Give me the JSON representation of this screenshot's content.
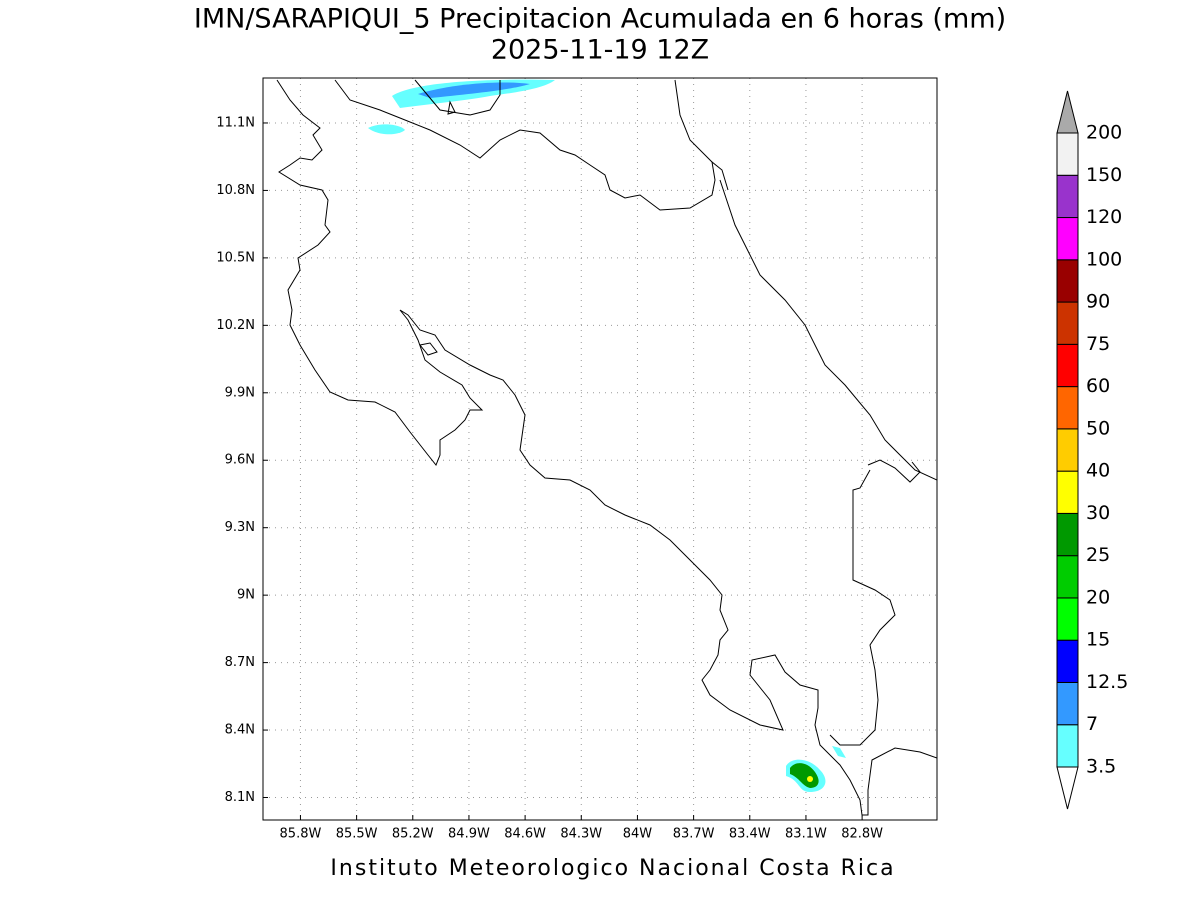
{
  "chart_data": {
    "type": "map",
    "title": "IMN/SARAPIQUI_5 Precipitacion Acumulada en 6 horas (mm)",
    "subtitle": "2025-11-19 12Z",
    "footer": "Instituto Meteorologico Nacional Costa Rica",
    "xlim": [
      -86.0,
      -82.4
    ],
    "ylim": [
      8.0,
      11.3
    ],
    "xticks": [
      {
        "value": -85.8,
        "label": "85.8W"
      },
      {
        "value": -85.5,
        "label": "85.5W"
      },
      {
        "value": -85.2,
        "label": "85.2W"
      },
      {
        "value": -84.9,
        "label": "84.9W"
      },
      {
        "value": -84.6,
        "label": "84.6W"
      },
      {
        "value": -84.3,
        "label": "84.3W"
      },
      {
        "value": -84.0,
        "label": "84W"
      },
      {
        "value": -83.7,
        "label": "83.7W"
      },
      {
        "value": -83.4,
        "label": "83.4W"
      },
      {
        "value": -83.1,
        "label": "83.1W"
      },
      {
        "value": -82.8,
        "label": "82.8W"
      }
    ],
    "yticks": [
      {
        "value": 8.1,
        "label": "8.1N"
      },
      {
        "value": 8.4,
        "label": "8.4N"
      },
      {
        "value": 8.7,
        "label": "8.7N"
      },
      {
        "value": 9.0,
        "label": "9N"
      },
      {
        "value": 9.3,
        "label": "9.3N"
      },
      {
        "value": 9.6,
        "label": "9.6N"
      },
      {
        "value": 9.9,
        "label": "9.9N"
      },
      {
        "value": 10.2,
        "label": "10.2N"
      },
      {
        "value": 10.5,
        "label": "10.5N"
      },
      {
        "value": 10.8,
        "label": "10.8N"
      },
      {
        "value": 11.1,
        "label": "11.1N"
      }
    ],
    "grid": true,
    "colorbar": {
      "levels": [
        3.5,
        7,
        12.5,
        15,
        20,
        25,
        30,
        40,
        50,
        60,
        75,
        90,
        100,
        120,
        150,
        200
      ],
      "colors": [
        "#ffffff",
        "#66ffff",
        "#3399ff",
        "#0000ff",
        "#00ff00",
        "#00cc00",
        "#009900",
        "#ffff00",
        "#ffcc00",
        "#ff6600",
        "#ff0000",
        "#cc3300",
        "#990000",
        "#ff00ff",
        "#9933cc",
        "#f2f2f2",
        "#aaaaaa"
      ]
    }
  }
}
